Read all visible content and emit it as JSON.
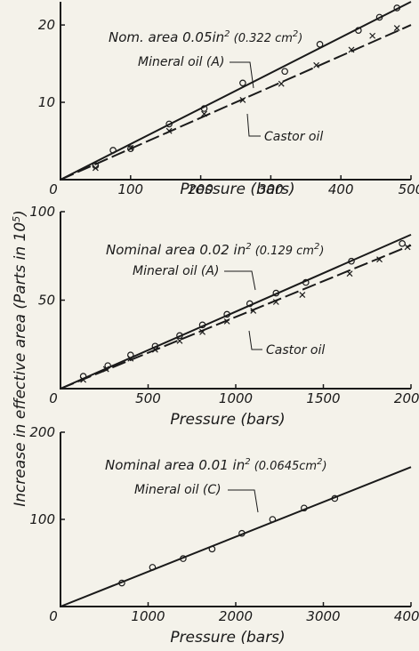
{
  "ylabel": "Increase in effective area (Parts in 10",
  "ylabel_sup": "5",
  "ylabel_end": ")",
  "chart_data": [
    {
      "type": "line",
      "title": "Nom. area 0.05in",
      "title_sup": "2",
      "title_tail": " (0.322 cm",
      "title_tail_sup": "2",
      "title_tail_end": ")",
      "xlabel": "Pressure (bars)",
      "xlim": [
        0,
        500
      ],
      "ylim": [
        0,
        23
      ],
      "xticks": [
        0,
        100,
        200,
        300,
        400,
        500
      ],
      "xtick_labels": [
        "0",
        "100",
        "200",
        "300",
        "400",
        "500"
      ],
      "yticks": [
        10,
        20
      ],
      "ytick_labels": [
        "10",
        "20"
      ],
      "series": [
        {
          "name": "Mineral oil (A)",
          "style": "solid",
          "marker": "circle",
          "fit": [
            [
              0,
              0
            ],
            [
              500,
              23
            ]
          ],
          "points": [
            [
              50,
              1.8
            ],
            [
              75,
              3.8
            ],
            [
              100,
              4.0
            ],
            [
              155,
              7.2
            ],
            [
              205,
              9.2
            ],
            [
              260,
              12.5
            ],
            [
              320,
              14.0
            ],
            [
              370,
              17.5
            ],
            [
              425,
              19.3
            ],
            [
              455,
              21.0
            ],
            [
              480,
              22.2
            ]
          ]
        },
        {
          "name": "Castor oil",
          "style": "dashed",
          "marker": "cross",
          "fit": [
            [
              0,
              0
            ],
            [
              500,
              20
            ]
          ],
          "points": [
            [
              50,
              1.5
            ],
            [
              100,
              4.1
            ],
            [
              155,
              6.3
            ],
            [
              205,
              8.5
            ],
            [
              260,
              10.3
            ],
            [
              315,
              12.4
            ],
            [
              365,
              14.8
            ],
            [
              415,
              16.8
            ],
            [
              445,
              18.6
            ],
            [
              480,
              19.6
            ]
          ]
        }
      ]
    },
    {
      "type": "line",
      "title": "Nominal area 0.02 in",
      "title_sup": "2",
      "title_tail": " (0.129 cm",
      "title_tail_sup": "2",
      "title_tail_end": ")",
      "xlabel": "Pressure (bars)",
      "xlim": [
        0,
        2000
      ],
      "ylim": [
        0,
        100
      ],
      "xticks": [
        0,
        500,
        1000,
        1500,
        2000
      ],
      "xtick_labels": [
        "0",
        "500",
        "1000",
        "1500",
        "2000"
      ],
      "yticks": [
        50,
        100
      ],
      "ytick_labels": [
        "50",
        "100"
      ],
      "series": [
        {
          "name": "Mineral oil (A)",
          "style": "solid",
          "marker": "circle",
          "fit": [
            [
              0,
              0
            ],
            [
              2000,
              87
            ]
          ],
          "points": [
            [
              130,
              7
            ],
            [
              270,
              13
            ],
            [
              400,
              19
            ],
            [
              540,
              24
            ],
            [
              680,
              30
            ],
            [
              810,
              36
            ],
            [
              950,
              42
            ],
            [
              1080,
              48
            ],
            [
              1230,
              54
            ],
            [
              1400,
              60
            ],
            [
              1660,
              72
            ],
            [
              1950,
              82
            ]
          ]
        },
        {
          "name": "Castor oil",
          "style": "dashed",
          "marker": "cross",
          "fit": [
            [
              0,
              0
            ],
            [
              2000,
              81
            ]
          ],
          "points": [
            [
              130,
              5
            ],
            [
              260,
              11
            ],
            [
              400,
              17
            ],
            [
              540,
              22
            ],
            [
              680,
              27
            ],
            [
              810,
              32
            ],
            [
              950,
              38
            ],
            [
              1100,
              44
            ],
            [
              1230,
              49
            ],
            [
              1380,
              53
            ],
            [
              1650,
              65
            ],
            [
              1820,
              73
            ],
            [
              1980,
              80
            ]
          ]
        }
      ]
    },
    {
      "type": "line",
      "title": "Nominal area 0.01 in",
      "title_sup": "2",
      "title_tail": " (0.0645cm",
      "title_tail_sup": "2",
      "title_tail_end": ")",
      "xlabel": "Pressure (bars)",
      "xlim": [
        0,
        4000
      ],
      "ylim": [
        0,
        200
      ],
      "xticks": [
        0,
        1000,
        2000,
        3000,
        4000
      ],
      "xtick_labels": [
        "0",
        "1000",
        "2000",
        "3000",
        "4000"
      ],
      "yticks": [
        100,
        200
      ],
      "ytick_labels": [
        "100",
        "200"
      ],
      "series": [
        {
          "name": "Mineral oil (C)",
          "style": "solid",
          "marker": "circle",
          "fit": [
            [
              0,
              0
            ],
            [
              4000,
              160
            ]
          ],
          "points": [
            [
              700,
              27
            ],
            [
              1050,
              45
            ],
            [
              1400,
              55
            ],
            [
              1730,
              66
            ],
            [
              2070,
              84
            ],
            [
              2420,
              100
            ],
            [
              2780,
              113
            ],
            [
              3130,
              124
            ]
          ]
        }
      ]
    }
  ]
}
